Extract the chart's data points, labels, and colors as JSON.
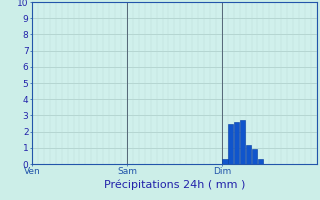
{
  "title": "Précipitations 24h ( mm )",
  "background_color": "#cceee8",
  "plot_bg_color": "#d0f0ec",
  "grid_color_h": "#aaccc8",
  "grid_color_v": "#bcd8d4",
  "bar_color": "#1055cc",
  "bar_edge_color": "#0038a0",
  "ylim": [
    0,
    10
  ],
  "yticks": [
    0,
    1,
    2,
    3,
    4,
    5,
    6,
    7,
    8,
    9,
    10
  ],
  "xtick_labels": [
    "Ven",
    "Sam",
    "Dim"
  ],
  "xtick_positions": [
    0,
    16,
    32
  ],
  "total_cols": 48,
  "bar_data_indices": [
    32,
    33,
    34,
    35,
    36,
    37,
    38
  ],
  "bar_values": [
    0.3,
    2.5,
    2.6,
    2.7,
    1.2,
    0.9,
    0.3
  ],
  "vline_positions": [
    0,
    16,
    32
  ],
  "vline_color": "#556677",
  "text_color": "#2222aa",
  "axis_color": "#2255aa",
  "title_fontsize": 8,
  "tick_fontsize": 6.5
}
